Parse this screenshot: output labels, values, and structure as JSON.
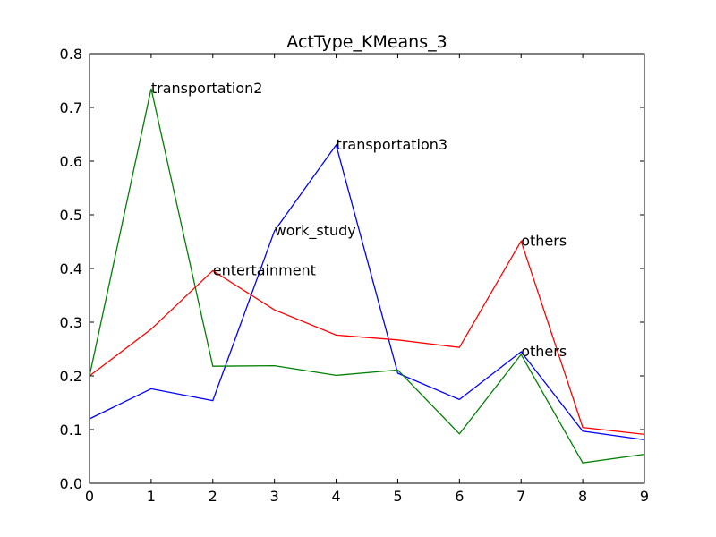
{
  "chart_data": {
    "type": "line",
    "title": "ActType_KMeans_3",
    "xlabel": "",
    "ylabel": "",
    "xlim": [
      0,
      9
    ],
    "ylim": [
      0,
      0.8
    ],
    "x": [
      0,
      1,
      2,
      3,
      4,
      5,
      6,
      7,
      8,
      9
    ],
    "x_ticks": [
      "0",
      "1",
      "2",
      "3",
      "4",
      "5",
      "6",
      "7",
      "8",
      "9"
    ],
    "y_ticks": [
      "0.0",
      "0.1",
      "0.2",
      "0.3",
      "0.4",
      "0.5",
      "0.6",
      "0.7",
      "0.8"
    ],
    "grid": false,
    "series": [
      {
        "color": "#0000ff",
        "values": [
          0.12,
          0.176,
          0.154,
          0.47,
          0.63,
          0.205,
          0.156,
          0.245,
          0.097,
          0.081
        ]
      },
      {
        "color": "#008000",
        "values": [
          0.2,
          0.735,
          0.218,
          0.219,
          0.201,
          0.211,
          0.092,
          0.24,
          0.038,
          0.054
        ]
      },
      {
        "color": "#ff0000",
        "values": [
          0.2,
          0.287,
          0.396,
          0.323,
          0.276,
          0.267,
          0.253,
          0.451,
          0.104,
          0.091
        ]
      }
    ],
    "annotations": [
      {
        "text": "transportation2",
        "x": 1,
        "y": 0.735
      },
      {
        "text": "transportation3",
        "x": 4,
        "y": 0.63
      },
      {
        "text": "work_study",
        "x": 3,
        "y": 0.47
      },
      {
        "text": "entertainment",
        "x": 2,
        "y": 0.396
      },
      {
        "text": "others",
        "x": 7,
        "y": 0.451
      },
      {
        "text": "others",
        "x": 7,
        "y": 0.245
      }
    ]
  }
}
